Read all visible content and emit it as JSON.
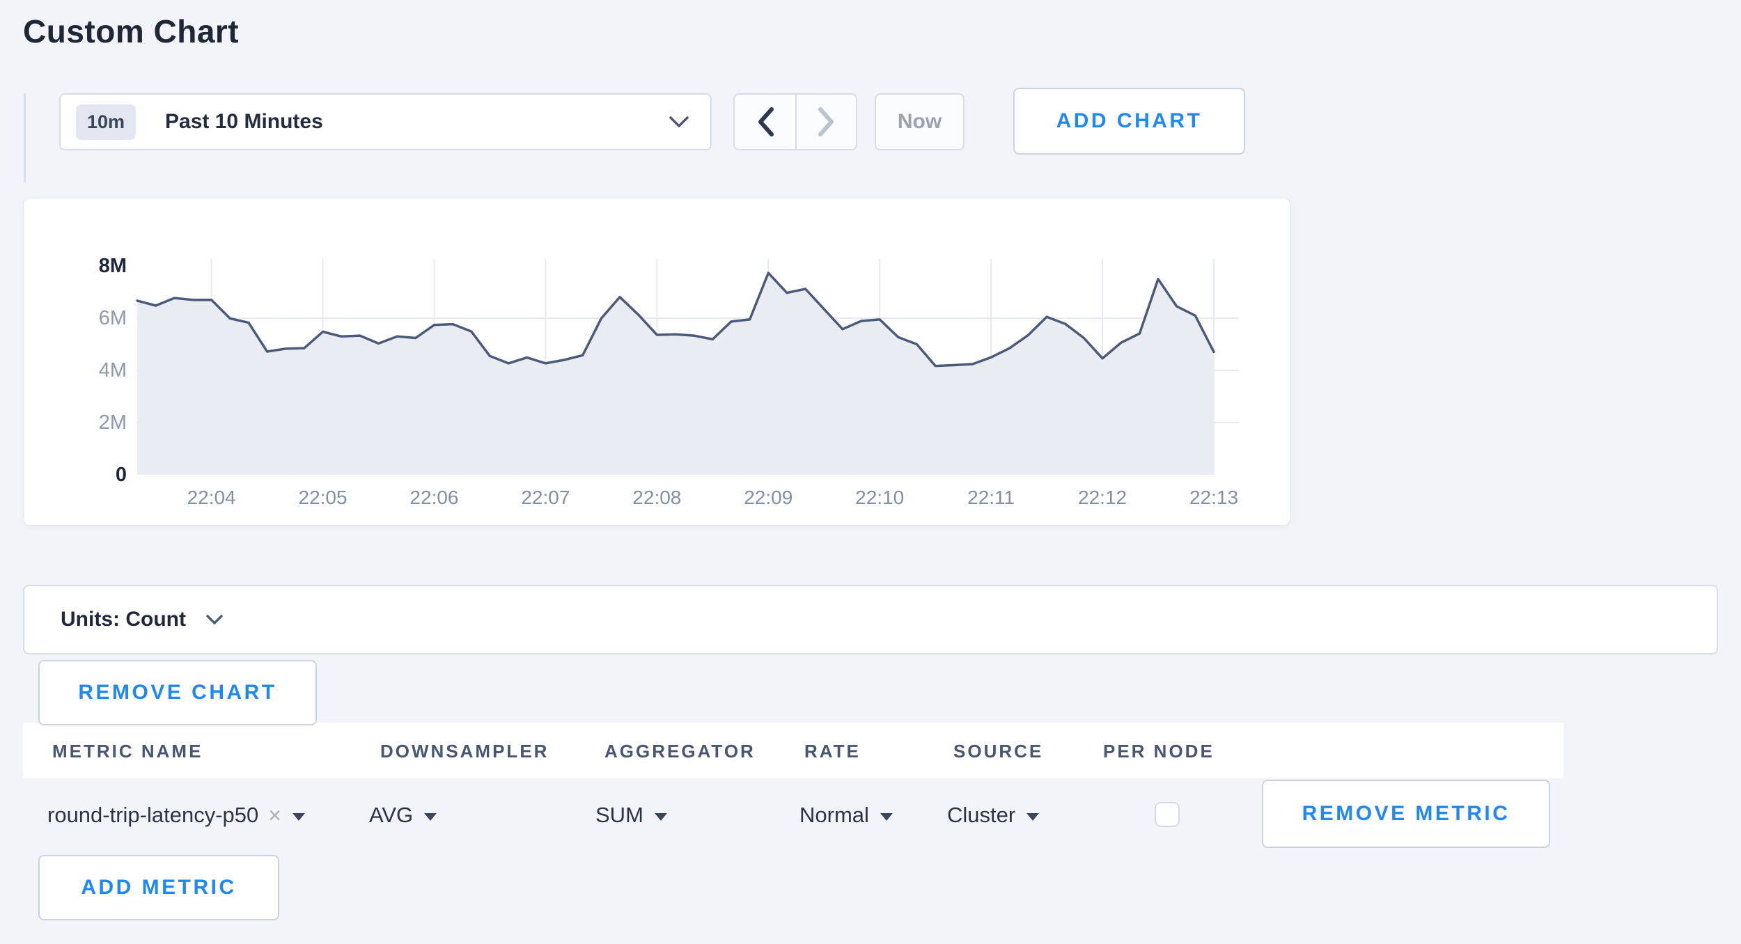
{
  "page": {
    "title": "Custom Chart"
  },
  "colors": {
    "background": "#f3f4f9",
    "accent_blue": "#1f88f2",
    "line": "#4a5a78",
    "area_fill": "#e9ecf2",
    "grid": "#e5e9f0",
    "axis_label": "#7f8fa9"
  },
  "toolbar": {
    "time_badge": "10m",
    "time_label": "Past 10 Minutes",
    "now_label": "Now",
    "add_chart_label": "ADD CHART",
    "prev_icon": "chevron-left",
    "next_icon": "chevron-right-disabled"
  },
  "chart_data": {
    "type": "area",
    "title": "",
    "xlabel": "",
    "ylabel": "count",
    "unit": "millions",
    "ylim": [
      0,
      8
    ],
    "y_tick_labels": [
      "0",
      "2M",
      "4M",
      "6M",
      "8M"
    ],
    "y_tick_values": [
      0,
      2,
      4,
      6,
      8
    ],
    "x_tick_labels": [
      "22:04",
      "22:05",
      "22:06",
      "22:07",
      "22:08",
      "22:09",
      "22:10",
      "22:11",
      "22:12",
      "22:13"
    ],
    "x_tick_indices": [
      4,
      10,
      16,
      22,
      28,
      34,
      40,
      46,
      52,
      58
    ],
    "grid": true,
    "legend": "none",
    "series": [
      {
        "name": "round-trip-latency-p50",
        "values_millions": [
          6.67,
          6.48,
          6.77,
          6.7,
          6.7,
          5.99,
          5.83,
          4.72,
          4.83,
          4.85,
          5.48,
          5.3,
          5.33,
          5.03,
          5.3,
          5.24,
          5.74,
          5.77,
          5.49,
          4.55,
          4.27,
          4.49,
          4.27,
          4.4,
          4.58,
          5.99,
          6.81,
          6.13,
          5.36,
          5.38,
          5.33,
          5.19,
          5.87,
          5.95,
          7.73,
          6.97,
          7.12,
          6.35,
          5.58,
          5.89,
          5.95,
          5.27,
          5.0,
          4.17,
          4.2,
          4.24,
          4.5,
          4.85,
          5.35,
          6.05,
          5.78,
          5.24,
          4.46,
          5.06,
          5.41,
          7.5,
          6.45,
          6.1,
          4.71
        ]
      }
    ]
  },
  "units_bar": {
    "label": "Units: Count"
  },
  "buttons": {
    "remove_chart": "REMOVE CHART",
    "remove_metric": "REMOVE METRIC",
    "add_metric": "ADD METRIC"
  },
  "metrics_table": {
    "columns": [
      "METRIC NAME",
      "DOWNSAMPLER",
      "AGGREGATOR",
      "RATE",
      "SOURCE",
      "PER NODE"
    ],
    "rows": [
      {
        "metric_name": "round-trip-latency-p50",
        "remove_tag": "×",
        "downsampler": "AVG",
        "aggregator": "SUM",
        "rate": "Normal",
        "source": "Cluster",
        "per_node_checked": false
      }
    ]
  }
}
